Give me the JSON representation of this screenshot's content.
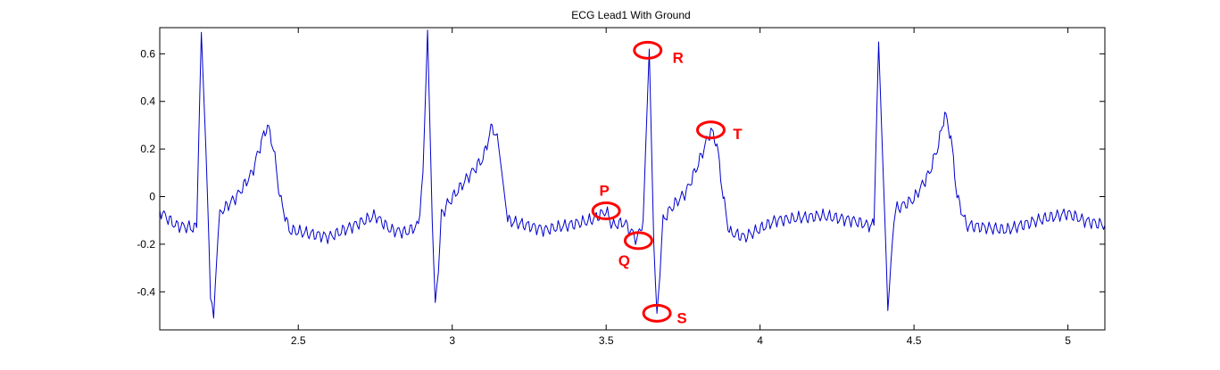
{
  "chart_data": {
    "type": "line",
    "title": "ECG Lead1 With Ground",
    "xlabel": "",
    "ylabel": "",
    "xlim": [
      2.05,
      5.12
    ],
    "ylim": [
      -0.56,
      0.71
    ],
    "grid": false,
    "x_ticks": [
      2.5,
      3,
      3.5,
      4,
      4.5,
      5
    ],
    "x_tick_labels": [
      "2.5",
      "3",
      "3.5",
      "4",
      "4.5",
      "5"
    ],
    "y_ticks": [
      0.6,
      0.4,
      0.2,
      0,
      -0.2,
      -0.4
    ],
    "y_tick_labels": [
      "0.6",
      "0.4",
      "0.2",
      "0",
      "-0.2",
      "-0.4"
    ],
    "series": [
      {
        "color": "#0000cc",
        "x": [
          2.05,
          2.1,
          2.15,
          2.17,
          2.185,
          2.2,
          2.215,
          2.225,
          2.235,
          2.245,
          2.26,
          2.3,
          2.35,
          2.38,
          2.4,
          2.42,
          2.44,
          2.47,
          2.6,
          2.75,
          2.8,
          2.85,
          2.89,
          2.905,
          2.92,
          2.935,
          2.945,
          2.955,
          2.965,
          2.98,
          3.05,
          3.1,
          3.13,
          3.15,
          3.18,
          3.3,
          3.45,
          3.5,
          3.52,
          3.56,
          3.6,
          3.62,
          3.64,
          3.655,
          3.665,
          3.675,
          3.685,
          3.71,
          3.76,
          3.8,
          3.84,
          3.86,
          3.88,
          3.9,
          3.95,
          4.05,
          4.2,
          4.3,
          4.35,
          4.37,
          4.385,
          4.4,
          4.415,
          4.425,
          4.435,
          4.445,
          4.46,
          4.5,
          4.55,
          4.58,
          4.6,
          4.62,
          4.64,
          4.67,
          4.8,
          4.9,
          5.0,
          5.05,
          5.12
        ],
        "y": [
          -0.06,
          -0.12,
          -0.13,
          -0.13,
          0.69,
          0.2,
          -0.4,
          -0.51,
          -0.25,
          -0.07,
          -0.05,
          0.0,
          0.1,
          0.23,
          0.3,
          0.2,
          0.0,
          -0.14,
          -0.17,
          -0.08,
          -0.14,
          -0.15,
          -0.12,
          0.1,
          0.7,
          -0.1,
          -0.46,
          -0.3,
          -0.08,
          -0.04,
          0.08,
          0.16,
          0.3,
          0.22,
          -0.1,
          -0.14,
          -0.1,
          -0.06,
          -0.12,
          -0.11,
          -0.18,
          -0.1,
          0.62,
          -0.2,
          -0.52,
          -0.3,
          -0.1,
          -0.05,
          0.02,
          0.14,
          0.28,
          0.22,
          0.0,
          -0.15,
          -0.17,
          -0.1,
          -0.08,
          -0.1,
          -0.12,
          -0.12,
          0.65,
          0.1,
          -0.46,
          -0.3,
          -0.08,
          -0.05,
          -0.04,
          -0.01,
          0.1,
          0.22,
          0.35,
          0.25,
          0.0,
          -0.12,
          -0.14,
          -0.1,
          -0.07,
          -0.1,
          -0.12
        ]
      }
    ],
    "annotations": [
      {
        "label": "P",
        "x": 3.5,
        "y": -0.06,
        "color": "#ff0000"
      },
      {
        "label": "Q",
        "x": 3.605,
        "y": -0.185,
        "color": "#ff0000"
      },
      {
        "label": "R",
        "x": 3.635,
        "y": 0.615,
        "color": "#ff0000"
      },
      {
        "label": "S",
        "x": 3.665,
        "y": -0.49,
        "color": "#ff0000"
      },
      {
        "label": "T",
        "x": 3.84,
        "y": 0.28,
        "color": "#ff0000"
      }
    ]
  }
}
